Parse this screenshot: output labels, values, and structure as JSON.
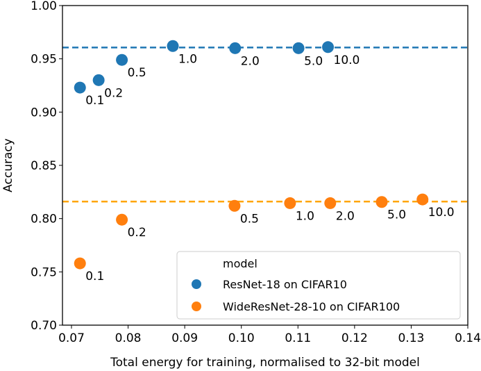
{
  "chart_data": {
    "type": "scatter",
    "title": "",
    "xlabel": "Total energy for training, normalised to 32-bit model",
    "ylabel": "Accuracy",
    "xlim": [
      0.07,
      0.14
    ],
    "ylim": [
      0.7,
      1.0
    ],
    "xticks": [
      "0.07",
      "0.08",
      "0.09",
      "0.10",
      "0.11",
      "0.12",
      "0.13",
      "0.14"
    ],
    "yticks": [
      "0.70",
      "0.75",
      "0.80",
      "0.85",
      "0.90",
      "0.95",
      "1.00"
    ],
    "grid": false,
    "legend": {
      "title": "model",
      "placement": "bottom-right"
    },
    "series": [
      {
        "name": "ResNet-18 on CIFAR10",
        "color": "#1f77b4",
        "reference_line": 0.9606,
        "points": [
          {
            "x": 0.0715,
            "y": 0.923,
            "label": "0.1"
          },
          {
            "x": 0.0748,
            "y": 0.93,
            "label": "0.2"
          },
          {
            "x": 0.0789,
            "y": 0.949,
            "label": "0.5"
          },
          {
            "x": 0.0879,
            "y": 0.962,
            "label": "1.0"
          },
          {
            "x": 0.0989,
            "y": 0.96,
            "label": "2.0"
          },
          {
            "x": 0.1101,
            "y": 0.96,
            "label": "5.0"
          },
          {
            "x": 0.1153,
            "y": 0.961,
            "label": "10.0"
          }
        ]
      },
      {
        "name": "WideResNet-28-10 on CIFAR100",
        "color": "#ff7f0e",
        "line_color": "#ffa500",
        "reference_line": 0.816,
        "points": [
          {
            "x": 0.0715,
            "y": 0.758,
            "label": "0.1"
          },
          {
            "x": 0.0789,
            "y": 0.799,
            "label": "0.2"
          },
          {
            "x": 0.0988,
            "y": 0.812,
            "label": "0.5"
          },
          {
            "x": 0.1086,
            "y": 0.8145,
            "label": "1.0"
          },
          {
            "x": 0.1157,
            "y": 0.8145,
            "label": "2.0"
          },
          {
            "x": 0.1248,
            "y": 0.8156,
            "label": "5.0"
          },
          {
            "x": 0.132,
            "y": 0.818,
            "label": "10.0"
          }
        ]
      }
    ]
  }
}
